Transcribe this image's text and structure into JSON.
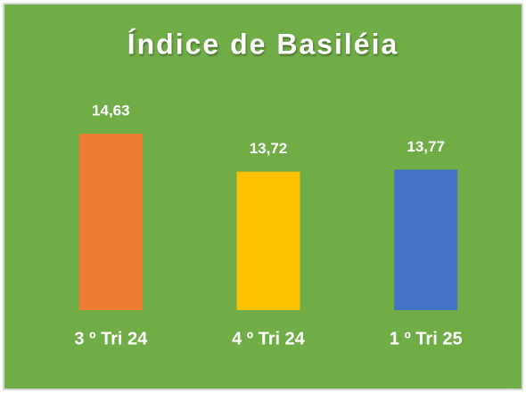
{
  "chart_data": {
    "type": "bar",
    "title": "Índice de Basiléia",
    "categories": [
      "3 º Tri 24",
      "4 º Tri 24",
      "1 º Tri 25"
    ],
    "values": [
      14.63,
      13.72,
      13.77
    ],
    "value_labels": [
      "14,63",
      "13,72",
      "13,77"
    ],
    "colors": [
      "#ED7D31",
      "#FFC000",
      "#4472C4"
    ],
    "background": "#70AD47",
    "ylim": [
      10.4,
      15.7
    ]
  }
}
